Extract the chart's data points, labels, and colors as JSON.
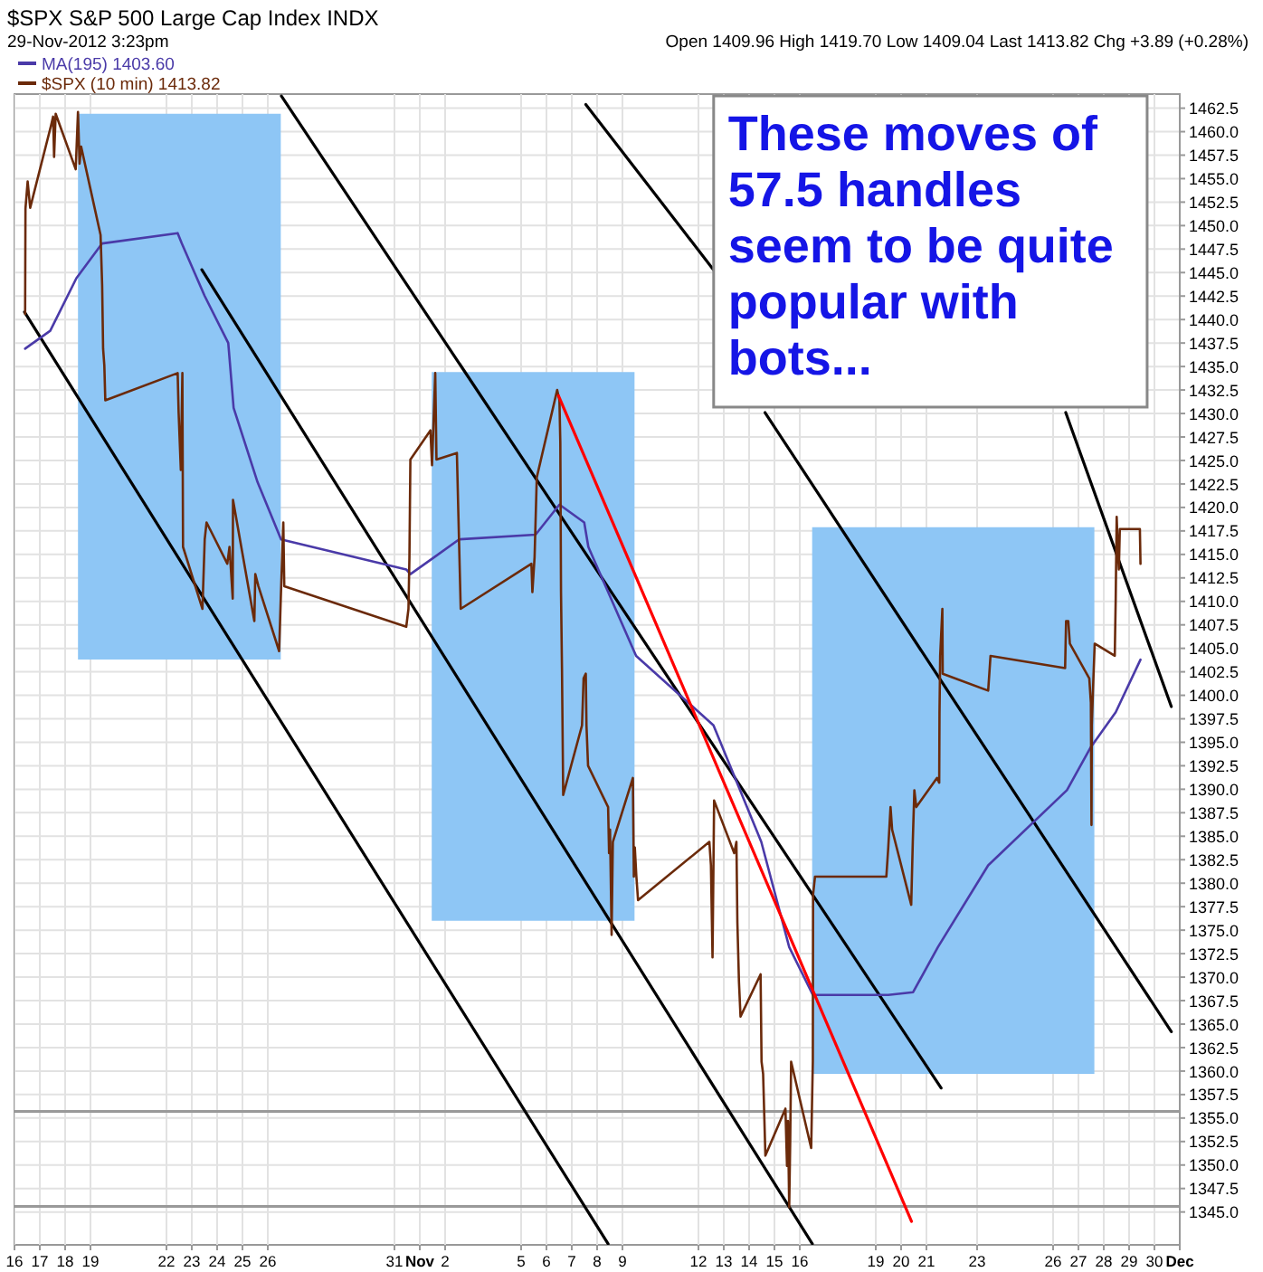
{
  "chart_data": {
    "type": "line",
    "title": "$SPX S&P 500 Large Cap Index INDX",
    "subtitle": "29-Nov-2012 3:23pm",
    "annotations": [
      "Open 1409.96 High 1419.70 Low 1409.04 Last 1413.82 Chg +3.89 (+0.28%)",
      "These moves of 57.5 handles seem to be quite popular with bots..."
    ],
    "legend": "top left",
    "grid": true,
    "xlim": [
      "2012-10-16",
      "2012-12-01"
    ],
    "ylim": [
      1341.5,
      1464
    ],
    "xticks": [
      {
        "value": "2012-10-16",
        "label": "16"
      },
      {
        "value": "2012-10-17",
        "label": "17"
      },
      {
        "value": "2012-10-18",
        "label": "18"
      },
      {
        "value": "2012-10-19",
        "label": "19"
      },
      {
        "value": "2012-10-22",
        "label": "22"
      },
      {
        "value": "2012-10-23",
        "label": "23"
      },
      {
        "value": "2012-10-24",
        "label": "24"
      },
      {
        "value": "2012-10-25",
        "label": "25"
      },
      {
        "value": "2012-10-26",
        "label": "26"
      },
      {
        "value": "2012-10-31",
        "label": "31"
      },
      {
        "value": "2012-11-01",
        "label": "Nov"
      },
      {
        "value": "2012-11-02",
        "label": "2"
      },
      {
        "value": "2012-11-05",
        "label": "5"
      },
      {
        "value": "2012-11-06",
        "label": "6"
      },
      {
        "value": "2012-11-07",
        "label": "7"
      },
      {
        "value": "2012-11-08",
        "label": "8"
      },
      {
        "value": "2012-11-09",
        "label": "9"
      },
      {
        "value": "2012-11-12",
        "label": "12"
      },
      {
        "value": "2012-11-13",
        "label": "13"
      },
      {
        "value": "2012-11-14",
        "label": "14"
      },
      {
        "value": "2012-11-15",
        "label": "15"
      },
      {
        "value": "2012-11-16",
        "label": "16"
      },
      {
        "value": "2012-11-19",
        "label": "19"
      },
      {
        "value": "2012-11-20",
        "label": "20"
      },
      {
        "value": "2012-11-21",
        "label": "21"
      },
      {
        "value": "2012-11-23",
        "label": "23"
      },
      {
        "value": "2012-11-26",
        "label": "26"
      },
      {
        "value": "2012-11-27",
        "label": "27"
      },
      {
        "value": "2012-11-28",
        "label": "28"
      },
      {
        "value": "2012-11-29",
        "label": "29"
      },
      {
        "value": "2012-11-30",
        "label": "30"
      },
      {
        "value": "2012-12-01",
        "label": "Dec"
      }
    ],
    "yticks": [
      {
        "value": 1345,
        "label": "1345.0"
      },
      {
        "value": 1347.5,
        "label": "1347.5"
      },
      {
        "value": 1350,
        "label": "1350.0"
      },
      {
        "value": 1352.5,
        "label": "1352.5"
      },
      {
        "value": 1355,
        "label": "1355.0"
      },
      {
        "value": 1357.5,
        "label": "1357.5"
      },
      {
        "value": 1360,
        "label": "1360.0"
      },
      {
        "value": 1362.5,
        "label": "1362.5"
      },
      {
        "value": 1365,
        "label": "1365.0"
      },
      {
        "value": 1367.5,
        "label": "1367.5"
      },
      {
        "value": 1370,
        "label": "1370.0"
      },
      {
        "value": 1372.5,
        "label": "1372.5"
      },
      {
        "value": 1375,
        "label": "1375.0"
      },
      {
        "value": 1377.5,
        "label": "1377.5"
      },
      {
        "value": 1380,
        "label": "1380.0"
      },
      {
        "value": 1382.5,
        "label": "1382.5"
      },
      {
        "value": 1385,
        "label": "1385.0"
      },
      {
        "value": 1387.5,
        "label": "1387.5"
      },
      {
        "value": 1390,
        "label": "1390.0"
      },
      {
        "value": 1392.5,
        "label": "1392.5"
      },
      {
        "value": 1395,
        "label": "1395.0"
      },
      {
        "value": 1397.5,
        "label": "1397.5"
      },
      {
        "value": 1400,
        "label": "1400.0"
      },
      {
        "value": 1402.5,
        "label": "1402.5"
      },
      {
        "value": 1405,
        "label": "1405.0"
      },
      {
        "value": 1407.5,
        "label": "1407.5"
      },
      {
        "value": 1410,
        "label": "1410.0"
      },
      {
        "value": 1412.5,
        "label": "1412.5"
      },
      {
        "value": 1415,
        "label": "1415.0"
      },
      {
        "value": 1417.5,
        "label": "1417.5"
      },
      {
        "value": 1420,
        "label": "1420.0"
      },
      {
        "value": 1422.5,
        "label": "1422.5"
      },
      {
        "value": 1425,
        "label": "1425.0"
      },
      {
        "value": 1427.5,
        "label": "1427.5"
      },
      {
        "value": 1430,
        "label": "1430.0"
      },
      {
        "value": 1432.5,
        "label": "1432.5"
      },
      {
        "value": 1435,
        "label": "1435.0"
      },
      {
        "value": 1437.5,
        "label": "1437.5"
      },
      {
        "value": 1440,
        "label": "1440.0"
      },
      {
        "value": 1442.5,
        "label": "1442.5"
      },
      {
        "value": 1445,
        "label": "1445.0"
      },
      {
        "value": 1447.5,
        "label": "1447.5"
      },
      {
        "value": 1450,
        "label": "1450.0"
      },
      {
        "value": 1452.5,
        "label": "1452.5"
      },
      {
        "value": 1455,
        "label": "1455.0"
      },
      {
        "value": 1457.5,
        "label": "1457.5"
      },
      {
        "value": 1460,
        "label": "1460.0"
      },
      {
        "value": 1462.5,
        "label": "1462.5"
      }
    ],
    "ref_lines": [
      {
        "axis": "y",
        "value": 1355.7,
        "color": "#999999"
      },
      {
        "axis": "y",
        "value": 1345.6,
        "color": "#999999"
      }
    ],
    "series": [
      {
        "type": "area",
        "color": "#8ec6f5",
        "x": [
          "2012-10-18T12:10",
          "2012-10-18T12:10",
          "2012-10-26T12:18",
          "2012-10-26T12:18"
        ],
        "values": [
          1403.8,
          1461.9,
          1461.9,
          1403.8
        ]
      },
      {
        "type": "area",
        "color": "#8ec6f5",
        "x": [
          "2012-11-01T11:19",
          "2012-11-01T11:19",
          "2012-11-09T11:27",
          "2012-11-09T11:27"
        ],
        "values": [
          1376.0,
          1434.4,
          1434.4,
          1376.0
        ]
      },
      {
        "type": "area",
        "color": "#8ec6f5",
        "x": [
          "2012-11-16T11:43",
          "2012-11-16T11:43",
          "2012-11-27T15:05",
          "2012-11-27T15:05"
        ],
        "values": [
          1359.7,
          1417.9,
          1417.9,
          1359.7
        ]
      },
      {
        "color": "#000000",
        "x": [
          "2012-10-16T09:30",
          "2012-11-08T10:25"
        ],
        "values": [
          1440.8,
          1341.6
        ]
      },
      {
        "color": "#000000",
        "x": [
          "2012-10-23T09:30",
          "2012-11-16T11:54"
        ],
        "values": [
          1445.3,
          1341.6
        ]
      },
      {
        "color": "#000000",
        "x": [
          "2012-10-26T12:53",
          "2012-11-21T13:55"
        ],
        "values": [
          1463.8,
          1358.2
        ]
      },
      {
        "color": "#000000",
        "x": [
          "2012-11-07T13:16",
          "2012-11-12T14:15",
          "2012-11-13T14:42",
          "2012-11-14T15:05",
          "2012-11-30T16:00"
        ],
        "values": [
          1462.9,
          1445.3,
          null,
          1430.1,
          1364.2
        ]
      },
      {
        "color": "#000000",
        "x": [
          "2012-11-26T11:58",
          "2012-11-30T16:00"
        ],
        "values": [
          1430.1,
          1398.8
        ]
      },
      {
        "name": "MA(195) 1403.60",
        "color": "#4a3aa8",
        "x": [
          "2012-10-16T10:05",
          "2012-10-17T09:53",
          "2012-10-18T10:40",
          "2012-10-19T11:04",
          "2012-10-22T10:36",
          "2012-10-22T14:30",
          "2012-10-23T12:14",
          "2012-10-24T10:32",
          "2012-10-24T15:37",
          "2012-10-25T14:15",
          "2012-10-26T12:33",
          "2012-10-31T11:11",
          "2012-10-31T15:05",
          "2012-11-01T13:44",
          "2012-11-02T13:12",
          "2012-11-05T13:40",
          "2012-11-06T12:18",
          "2012-11-07T11:47",
          "2012-11-07T15:41",
          "2012-11-09T12:57",
          "2012-11-12T14:15",
          "2012-11-14T11:31",
          "2012-11-15T13:59",
          "2012-11-16T12:22",
          "2012-11-19T11:50",
          "2012-11-20T11:23",
          "2012-11-21T10:52",
          "2012-11-23T10:29",
          "2012-11-26T13:08",
          "2012-11-27T11:47",
          "2012-11-28T11:19",
          "2012-11-29T10:48"
        ],
        "values": [
          1436.9,
          1438.8,
          1444.4,
          1448.1,
          1449.2,
          1448.1,
          1442.5,
          1437.5,
          1430.6,
          1422.7,
          1416.6,
          1413.4,
          1412.9,
          1414.7,
          1416.6,
          1417.1,
          1420.3,
          1418.4,
          1415.8,
          1404.2,
          1396.8,
          1384.4,
          1373.2,
          1368.1,
          1368.1,
          1368.4,
          1373.2,
          1381.9,
          1389.9,
          1394.5,
          1398.2,
          1403.8
        ]
      },
      {
        "name": "$SPX (10 min) 1413.82",
        "color": "#6b2a0a",
        "x": [
          "2012-10-16T10:05",
          "2012-10-16T10:25",
          "2012-10-16T12:29",
          "2012-10-16T14:54",
          "2012-10-17T10:32",
          "2012-10-17T12:37",
          "2012-10-17T13:32",
          "2012-10-17T15:02",
          "2012-10-18T10:01",
          "2012-10-18T12:10",
          "2012-10-18T13:40",
          "2012-10-18T15:09",
          "2012-10-19T09:34",
          "2012-10-19T11:04",
          "2012-10-19T11:58",
          "2012-10-19T13:08",
          "2012-10-19T14:03",
          "2012-10-22T10:36",
          "2012-10-22T11:31",
          "2012-10-22T13:36",
          "2012-10-22T15:05",
          "2012-10-22T15:41",
          "2012-10-23T10:05",
          "2012-10-23T12:14",
          "2012-10-23T13:59",
          "2012-10-24T09:38",
          "2012-10-24T11:43",
          "2012-10-24T14:46",
          "2012-10-24T15:02",
          "2012-10-25T11:15",
          "2012-10-25T12:10",
          "2012-10-25T15:09",
          "2012-10-26T10:44",
          "2012-10-26T12:18",
          "2012-10-26T14:42",
          "2012-10-26T15:37",
          "2012-10-31T11:11",
          "2012-10-31T13:16",
          "2012-10-31T14:11",
          "2012-10-31T15:05",
          "2012-11-01T10:05",
          "2012-11-01T11:35",
          "2012-11-01T14:38",
          "2012-11-01T15:48",
          "2012-11-02T11:08",
          "2012-11-02T12:37",
          "2012-11-02T14:46",
          "2012-11-05T09:46",
          "2012-11-05T10:40",
          "2012-11-05T12:45",
          "2012-11-05T14:50",
          "2012-11-06T10:09",
          "2012-11-06T12:18",
          "2012-11-06T13:08",
          "2012-11-06T13:47",
          "2012-11-06T14:42",
          "2012-11-06T15:52",
          "2012-11-07T09:42",
          "2012-11-07T11:11",
          "2012-11-07T13:16",
          "2012-11-07T13:55",
          "2012-11-07T15:25",
          "2012-11-08T10:25",
          "2012-11-08T11:19",
          "2012-11-08T12:14",
          "2012-11-08T13:44",
          "2012-11-08T14:54",
          "2012-11-09T09:53",
          "2012-11-09T10:48",
          "2012-11-09T11:43",
          "2012-11-09T13:12",
          "2012-11-09T14:46",
          "2012-11-12T10:21",
          "2012-11-12T11:50",
          "2012-11-12T13:20",
          "2012-11-12T14:50",
          "2012-11-13T09:53",
          "2012-11-13T11:58",
          "2012-11-13T12:53",
          "2012-11-13T14:23",
          "2012-11-13T15:52",
          "2012-11-14T10:52",
          "2012-11-14T11:47",
          "2012-11-14T13:16",
          "2012-11-14T15:25",
          "2012-11-15T10:25",
          "2012-11-15T11:54",
          "2012-11-15T12:49",
          "2012-11-15T13:59",
          "2012-11-15T14:54",
          "2012-11-15T15:48",
          "2012-11-16T10:48",
          "2012-11-16T12:22",
          "2012-11-16T12:37",
          "2012-11-16T14:26",
          "2012-11-19T10:01",
          "2012-11-19T11:50",
          "2012-11-19T13:59",
          "2012-11-19T15:29",
          "2012-11-20T09:34",
          "2012-11-20T11:04",
          "2012-11-20T12:33",
          "2012-11-20T14:23",
          "2012-11-21T09:57",
          "2012-11-21T12:06",
          "2012-11-21T12:22",
          "2012-11-21T13:01",
          "2012-11-21T15:05",
          "2012-11-21T15:25",
          "2012-11-23T10:29",
          "2012-11-23T12:43",
          "2012-11-26T11:23",
          "2012-11-26T12:18",
          "2012-11-26T14:23",
          "2012-11-26T15:52",
          "2012-11-27T10:17",
          "2012-11-27T11:47",
          "2012-11-27T12:22",
          "2012-11-27T12:41",
          "2012-11-27T14:11",
          "2012-11-27T15:25",
          "2012-11-28T10:25",
          "2012-11-28T11:19",
          "2012-11-28T12:14",
          "2012-11-28T13:24",
          "2012-11-28T14:19",
          "2012-11-28T15:13",
          "2012-11-29T10:13",
          "2012-11-29T10:48"
        ],
        "values": [
          1440.6,
          1451.8,
          1454.7,
          1451.9,
          1460.6,
          1461.6,
          1457.3,
          1461.9,
          1456.0,
          1462.1,
          1456.6,
          1458.4,
          1449.0,
          1443.6,
          1436.9,
          1435.1,
          1431.4,
          1434.3,
          1430.1,
          1424.0,
          1434.3,
          1415.8,
          1409.2,
          1416.6,
          1418.4,
          1414.0,
          1415.8,
          1410.3,
          1420.8,
          1407.9,
          1412.9,
          1411.6,
          1404.7,
          1410.3,
          1418.4,
          1411.6,
          1407.3,
          1409.2,
          1414.7,
          1425.1,
          1428.2,
          1424.5,
          1434.3,
          1425.1,
          1425.8,
          1419.0,
          1409.2,
          1414.0,
          1411.0,
          1414.7,
          1423.2,
          1432.5,
          1431.4,
          1426.9,
          1411.0,
          1402.9,
          1389.4,
          1396.8,
          1401.8,
          1402.3,
          1396.8,
          1392.5,
          1388.1,
          1383.2,
          1385.7,
          1374.5,
          1384.4,
          1391.2,
          1380.7,
          1383.8,
          1380.7,
          1378.2,
          1384.4,
          1381.9,
          1372.1,
          1388.8,
          1383.2,
          1384.4,
          1375.8,
          1369.5,
          1365.8,
          1370.3,
          1361.0,
          1359.7,
          1351.0,
          1356.0,
          1349.9,
          1354.7,
          1345.5,
          1352.3,
          1361.0,
          1351.8,
          1361.0,
          1378.8,
          1380.7,
          1380.7,
          1383.8,
          1388.1,
          1385.7,
          1377.7,
          1384.4,
          1389.9,
          1388.1,
          1391.2,
          1390.7,
          1398.1,
          1404.2,
          1409.2,
          1402.3,
          1400.5,
          1404.2,
          1402.9,
          1407.9,
          1407.9,
          1405.5,
          1401.8,
          1399.2,
          1386.2,
          1396.8,
          1401.8,
          1405.5,
          1404.2,
          1410.3,
          1419.0,
          1415.3,
          1413.4,
          1417.7,
          1417.7,
          1414.0
        ]
      },
      {
        "color": "#ff0000",
        "x": [
          "2012-11-06T11:23",
          "2012-11-20T09:53"
        ],
        "values": [
          1431.9,
          1344.0
        ]
      }
    ]
  }
}
